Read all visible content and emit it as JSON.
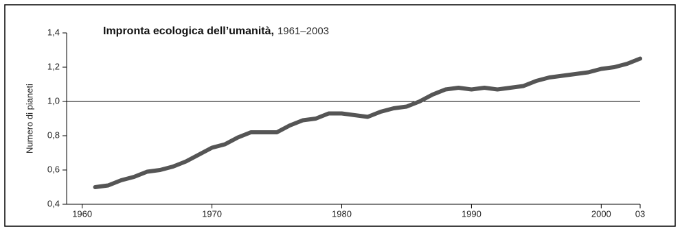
{
  "chart_data": {
    "type": "line",
    "title": "Impronta ecologica dell’umanità,",
    "subtitle": "1961–2003",
    "y_label": "Numero di pianeti",
    "x": [
      1961,
      1962,
      1963,
      1964,
      1965,
      1966,
      1967,
      1968,
      1969,
      1970,
      1971,
      1972,
      1973,
      1974,
      1975,
      1976,
      1977,
      1978,
      1979,
      1980,
      1981,
      1982,
      1983,
      1984,
      1985,
      1986,
      1987,
      1988,
      1989,
      1990,
      1991,
      1992,
      1993,
      1994,
      1995,
      1996,
      1997,
      1998,
      1999,
      2000,
      2001,
      2002,
      2003
    ],
    "series": [
      {
        "color": "#555555",
        "values": [
          0.5,
          0.51,
          0.54,
          0.56,
          0.59,
          0.6,
          0.62,
          0.65,
          0.69,
          0.73,
          0.75,
          0.79,
          0.82,
          0.82,
          0.82,
          0.86,
          0.89,
          0.9,
          0.93,
          0.93,
          0.92,
          0.91,
          0.94,
          0.96,
          0.97,
          1.0,
          1.04,
          1.07,
          1.08,
          1.07,
          1.08,
          1.07,
          1.08,
          1.09,
          1.12,
          1.14,
          1.15,
          1.16,
          1.17,
          1.19,
          1.2,
          1.22,
          1.25
        ]
      }
    ],
    "xlim": [
      1958.8,
      2003
    ],
    "xticks": [
      1960,
      1970,
      1980,
      1990,
      2000,
      {
        "value": 2003,
        "label": "03"
      }
    ],
    "ylim": [
      0.4,
      1.4
    ],
    "yticks": [
      {
        "value": 0.4,
        "label": "0,4"
      },
      {
        "value": 0.6,
        "label": "0,6"
      },
      {
        "value": 0.8,
        "label": "0,8"
      },
      {
        "value": 1.0,
        "label": "1,0"
      },
      {
        "value": 1.2,
        "label": "1,2"
      },
      {
        "value": 1.4,
        "label": "1,4"
      }
    ],
    "reference_line": 1.0
  }
}
